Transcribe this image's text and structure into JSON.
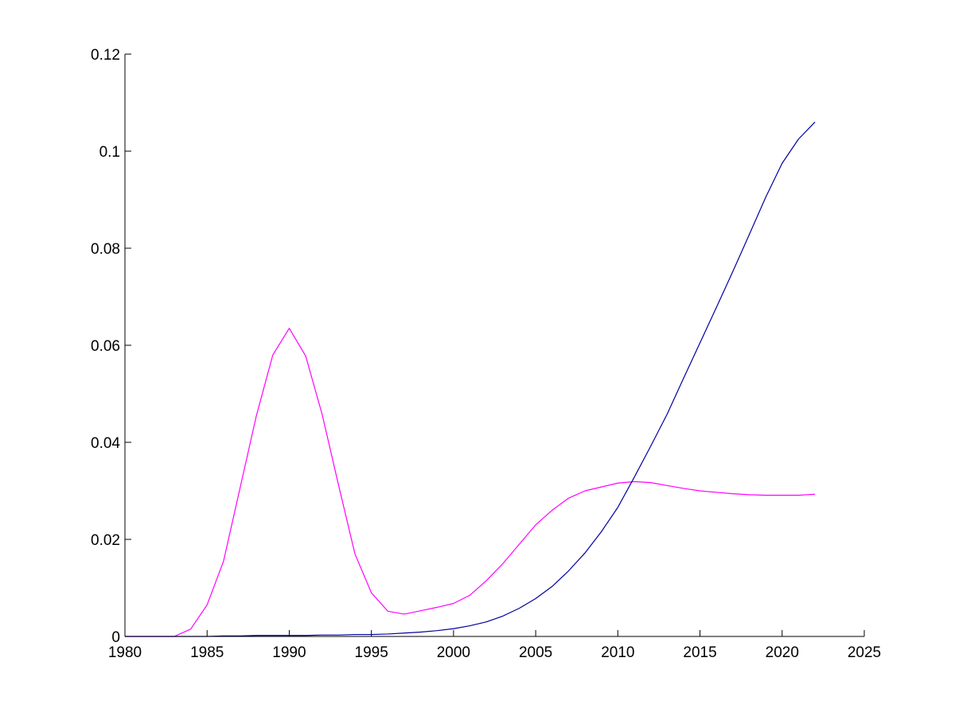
{
  "chart_data": {
    "type": "line",
    "title": "",
    "xlabel": "",
    "ylabel": "",
    "xlim": [
      1980,
      2025
    ],
    "ylim": [
      0,
      0.12
    ],
    "xticks": [
      1980,
      1985,
      1990,
      1995,
      2000,
      2005,
      2010,
      2015,
      2020,
      2025
    ],
    "xtick_labels": [
      "1980",
      "1985",
      "1990",
      "1995",
      "2000",
      "2005",
      "2010",
      "2015",
      "2020",
      "2025"
    ],
    "yticks": [
      0,
      0.02,
      0.04,
      0.06,
      0.08,
      0.1,
      0.12
    ],
    "ytick_labels": [
      "0",
      "0.02",
      "0.04",
      "0.06",
      "0.08",
      "0.1",
      "0.12"
    ],
    "grid": false,
    "legend": false,
    "x": [
      1980,
      1981,
      1982,
      1983,
      1984,
      1985,
      1986,
      1987,
      1988,
      1989,
      1990,
      1991,
      1992,
      1993,
      1994,
      1995,
      1996,
      1997,
      1998,
      1999,
      2000,
      2001,
      2002,
      2003,
      2004,
      2005,
      2006,
      2007,
      2008,
      2009,
      2010,
      2011,
      2012,
      2013,
      2014,
      2015,
      2016,
      2017,
      2018,
      2019,
      2020,
      2021,
      2022
    ],
    "series": [
      {
        "color": "#ff00ff",
        "values": [
          0,
          0,
          0,
          0,
          0.0015,
          0.0065,
          0.0155,
          0.0305,
          0.0455,
          0.058,
          0.0635,
          0.0578,
          0.0458,
          0.0312,
          0.017,
          0.009,
          0.0052,
          0.0046,
          0.0053,
          0.006,
          0.0068,
          0.0085,
          0.0115,
          0.015,
          0.019,
          0.023,
          0.026,
          0.0285,
          0.03,
          0.0308,
          0.0316,
          0.0319,
          0.0317,
          0.0311,
          0.0305,
          0.03,
          0.0297,
          0.0294,
          0.0292,
          0.0291,
          0.0291,
          0.0291,
          0.0293
        ]
      },
      {
        "color": "#0000a0",
        "values": [
          0,
          0,
          0,
          0,
          0,
          0,
          0.0001,
          0.0001,
          0.0002,
          0.0002,
          0.0002,
          0.0002,
          0.0003,
          0.0003,
          0.0004,
          0.0004,
          0.0005,
          0.0007,
          0.0009,
          0.0012,
          0.0016,
          0.0022,
          0.003,
          0.0042,
          0.0058,
          0.0078,
          0.0103,
          0.0135,
          0.0172,
          0.0216,
          0.0266,
          0.0328,
          0.0392,
          0.0458,
          0.0532,
          0.0605,
          0.0678,
          0.0752,
          0.0828,
          0.0905,
          0.0975,
          0.1025,
          0.106
        ]
      }
    ]
  }
}
